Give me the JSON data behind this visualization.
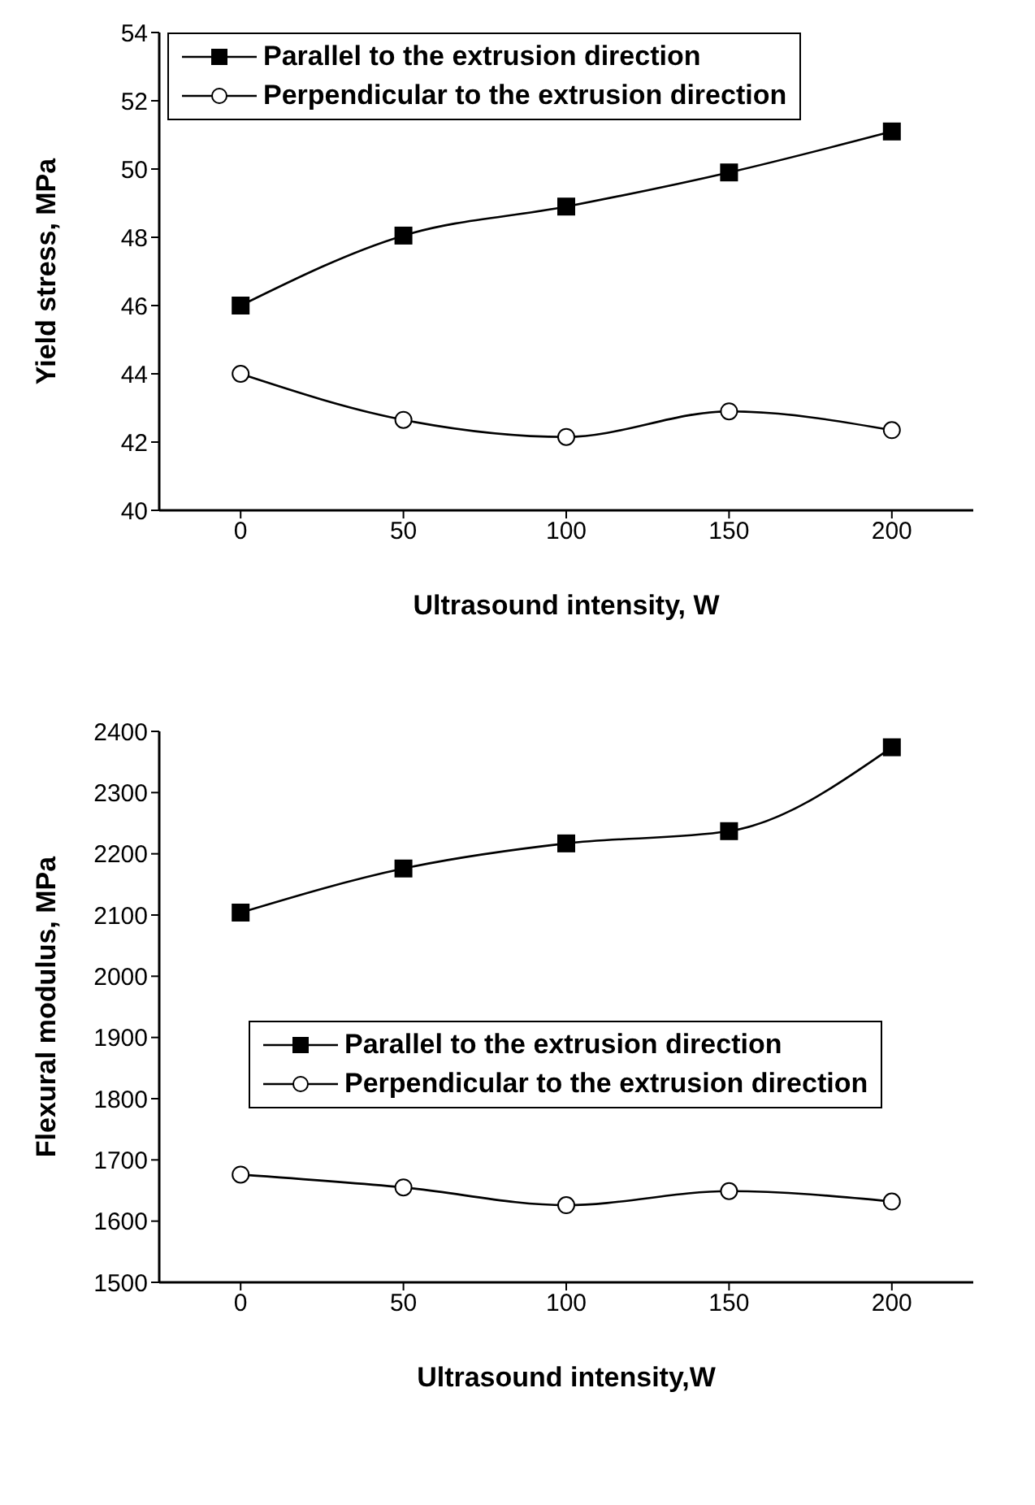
{
  "chart_data": [
    {
      "type": "line",
      "x": [
        0,
        50,
        100,
        150,
        200
      ],
      "xlabel": "Ultrasound intensity,   W",
      "ylabel": "Yield stress,   MPa",
      "xlim": [
        -25,
        225
      ],
      "xticks": [
        0,
        50,
        100,
        150,
        200
      ],
      "ylim": [
        40,
        54
      ],
      "yticks": [
        40,
        42,
        44,
        46,
        48,
        50,
        52,
        54
      ],
      "legend": "top left",
      "grid": false,
      "line_style": "solid",
      "series": [
        {
          "name": "Parallel to the extrusion direction",
          "color": "#000000",
          "marker": "square",
          "values": [
            46.0,
            48.05,
            48.9,
            49.9,
            51.1
          ]
        },
        {
          "name": "Perpendicular to the extrusion direction",
          "color": "#000000",
          "marker": "circle",
          "values": [
            44.0,
            42.65,
            42.15,
            42.9,
            42.35
          ]
        }
      ]
    },
    {
      "type": "line",
      "x": [
        0,
        50,
        100,
        150,
        200
      ],
      "xlabel": "Ultrasound intensity,W",
      "ylabel": "Flexural modulus, MPa",
      "xlim": [
        -25,
        225
      ],
      "xticks": [
        0,
        50,
        100,
        150,
        200
      ],
      "ylim": [
        1500,
        2400
      ],
      "yticks": [
        1500,
        1600,
        1700,
        1800,
        1900,
        2000,
        2100,
        2200,
        2300,
        2400
      ],
      "legend": "right",
      "grid": false,
      "line_style": "solid",
      "series": [
        {
          "name": "Parallel to the extrusion direction",
          "color": "#000000",
          "marker": "square",
          "values": [
            2104,
            2176,
            2217,
            2237,
            2374
          ]
        },
        {
          "name": "Perpendicular to the extrusion direction",
          "color": "#000000",
          "marker": "circle",
          "values": [
            1676,
            1655,
            1626,
            1649,
            1632
          ]
        }
      ]
    }
  ]
}
